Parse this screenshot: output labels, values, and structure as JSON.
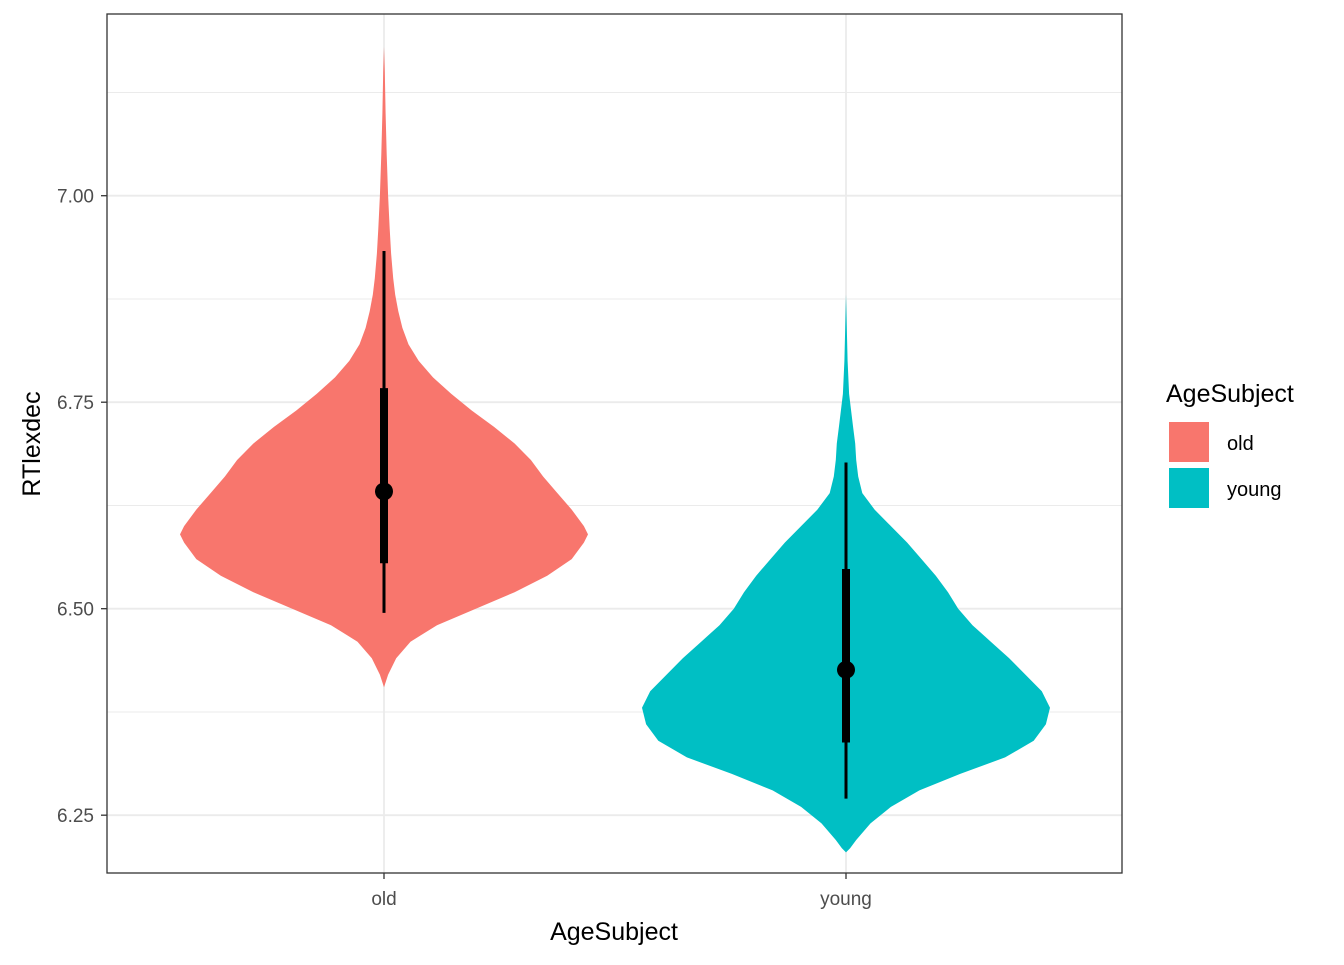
{
  "chart_data": {
    "type": "violin",
    "xlabel": "AgeSubject",
    "ylabel": "RTlexdec",
    "categories": [
      "old",
      "young"
    ],
    "ylim": [
      6.18,
      7.22
    ],
    "yticks": [
      {
        "value": 6.25,
        "label": "6.25"
      },
      {
        "value": 6.5,
        "label": "6.50"
      },
      {
        "value": 6.75,
        "label": "6.75"
      },
      {
        "value": 7.0,
        "label": "7.00"
      }
    ],
    "grid": true,
    "legend": {
      "title": "AgeSubject",
      "position": "right",
      "entries": [
        {
          "label": "old",
          "color": "#F8766D"
        },
        {
          "label": "young",
          "color": "#00BFC4"
        }
      ]
    },
    "series": [
      {
        "category": "old",
        "color": "#F8766D",
        "density_profile": [
          [
            6.405,
            0.0
          ],
          [
            6.42,
            0.02
          ],
          [
            6.44,
            0.06
          ],
          [
            6.46,
            0.13
          ],
          [
            6.48,
            0.26
          ],
          [
            6.5,
            0.45
          ],
          [
            6.52,
            0.64
          ],
          [
            6.54,
            0.8
          ],
          [
            6.56,
            0.92
          ],
          [
            6.58,
            0.98
          ],
          [
            6.59,
            1.0
          ],
          [
            6.6,
            0.98
          ],
          [
            6.62,
            0.92
          ],
          [
            6.64,
            0.85
          ],
          [
            6.66,
            0.78
          ],
          [
            6.68,
            0.72
          ],
          [
            6.7,
            0.64
          ],
          [
            6.72,
            0.54
          ],
          [
            6.74,
            0.43
          ],
          [
            6.76,
            0.33
          ],
          [
            6.78,
            0.24
          ],
          [
            6.8,
            0.17
          ],
          [
            6.82,
            0.12
          ],
          [
            6.84,
            0.09
          ],
          [
            6.86,
            0.07
          ],
          [
            6.88,
            0.055
          ],
          [
            6.9,
            0.045
          ],
          [
            6.93,
            0.035
          ],
          [
            6.96,
            0.028
          ],
          [
            7.0,
            0.02
          ],
          [
            7.05,
            0.013
          ],
          [
            7.1,
            0.008
          ],
          [
            7.15,
            0.004
          ],
          [
            7.18,
            0.0
          ]
        ],
        "median": 6.642,
        "iqr": [
          6.555,
          6.767
        ],
        "whisker": [
          6.495,
          6.933
        ]
      },
      {
        "category": "young",
        "color": "#00BFC4",
        "density_profile": [
          [
            6.205,
            0.0
          ],
          [
            6.21,
            0.02
          ],
          [
            6.22,
            0.05
          ],
          [
            6.24,
            0.12
          ],
          [
            6.26,
            0.22
          ],
          [
            6.28,
            0.36
          ],
          [
            6.3,
            0.56
          ],
          [
            6.32,
            0.78
          ],
          [
            6.34,
            0.92
          ],
          [
            6.36,
            0.98
          ],
          [
            6.38,
            1.0
          ],
          [
            6.4,
            0.96
          ],
          [
            6.42,
            0.88
          ],
          [
            6.44,
            0.8
          ],
          [
            6.46,
            0.71
          ],
          [
            6.48,
            0.62
          ],
          [
            6.5,
            0.55
          ],
          [
            6.52,
            0.5
          ],
          [
            6.54,
            0.44
          ],
          [
            6.56,
            0.37
          ],
          [
            6.58,
            0.3
          ],
          [
            6.6,
            0.22
          ],
          [
            6.62,
            0.14
          ],
          [
            6.64,
            0.08
          ],
          [
            6.66,
            0.06
          ],
          [
            6.68,
            0.05
          ],
          [
            6.7,
            0.045
          ],
          [
            6.72,
            0.035
          ],
          [
            6.74,
            0.025
          ],
          [
            6.76,
            0.015
          ],
          [
            6.8,
            0.008
          ],
          [
            6.84,
            0.004
          ],
          [
            6.88,
            0.0
          ]
        ],
        "median": 6.426,
        "iqr": [
          6.338,
          6.548
        ],
        "whisker": [
          6.27,
          6.677
        ]
      }
    ]
  }
}
